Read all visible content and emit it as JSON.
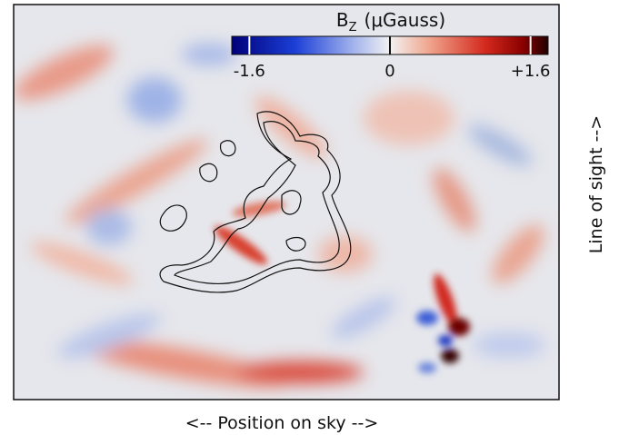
{
  "figure": {
    "colorbar": {
      "title": "B",
      "title_subscript": "Z",
      "unit": "(μGauss)",
      "lim": [
        -1.8,
        1.8
      ],
      "ticks": [
        -1.6,
        0,
        {
          "value": 1.6,
          "label": "+1.6"
        }
      ]
    },
    "x_label": "<-- Position on sky -->",
    "y_label": "Line of sight -->"
  }
}
